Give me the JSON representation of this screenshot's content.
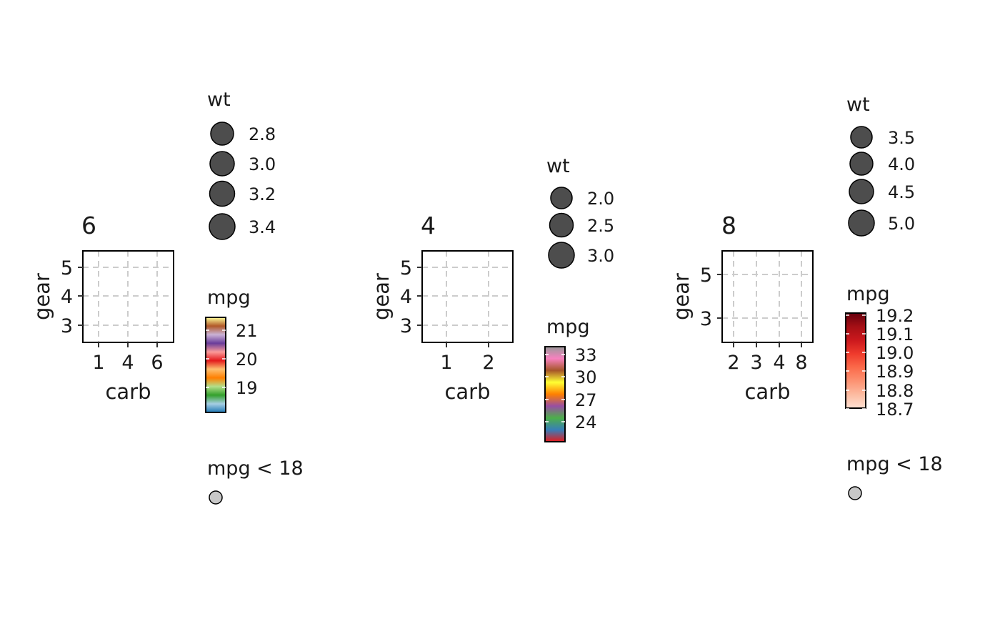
{
  "chart_data": [
    {
      "type": "scatter",
      "title": "6",
      "xlabel": "carb",
      "ylabel": "gear",
      "x_ticks": [
        "1",
        "4",
        "6"
      ],
      "y_ticks": [
        "3",
        "4",
        "5"
      ],
      "xlim": [
        0.45,
        6.55
      ],
      "ylim": [
        2.45,
        5.55
      ],
      "grid": "dashed",
      "points": [],
      "legends": {
        "size": {
          "title": "wt",
          "labels": [
            "2.8",
            "3.0",
            "3.2",
            "3.4"
          ],
          "values": [
            2.8,
            3.0,
            3.2,
            3.4
          ]
        },
        "color": {
          "title": "mpg",
          "labels": [
            "21",
            "20",
            "19"
          ],
          "values": [
            21,
            20,
            19
          ],
          "range": [
            17.8,
            21.4
          ],
          "colors": [
            "#1f78b4",
            "#a6cee3",
            "#33a02c",
            "#b2df8a",
            "#ff7f00",
            "#fdbf6f",
            "#e31a1c",
            "#fb9a99",
            "#6a3d9a",
            "#cab2d6",
            "#b15928",
            "#ffff99"
          ]
        },
        "na": {
          "title": "mpg < 18",
          "color": "#c8c8c8"
        }
      }
    },
    {
      "type": "scatter",
      "title": "4",
      "xlabel": "carb",
      "ylabel": "gear",
      "x_ticks": [
        "1",
        "2"
      ],
      "y_ticks": [
        "3",
        "4",
        "5"
      ],
      "xlim": [
        0.45,
        2.55
      ],
      "ylim": [
        2.45,
        5.55
      ],
      "grid": "dashed",
      "points": [],
      "legends": {
        "size": {
          "title": "wt",
          "labels": [
            "2.0",
            "2.5",
            "3.0"
          ],
          "values": [
            2.0,
            2.5,
            3.0
          ]
        },
        "color": {
          "title": "mpg",
          "labels": [
            "33",
            "30",
            "27",
            "24"
          ],
          "values": [
            33,
            30,
            27,
            24
          ],
          "range": [
            21.4,
            33.9
          ],
          "colors": [
            "#e41a1c",
            "#377eb8",
            "#4daf4a",
            "#984ea3",
            "#ff7f00",
            "#ffff33",
            "#a65628",
            "#f781bf",
            "#999999"
          ]
        },
        "na": null
      }
    },
    {
      "type": "scatter",
      "title": "8",
      "xlabel": "carb",
      "ylabel": "gear",
      "x_ticks": [
        "2",
        "3",
        "4",
        "8"
      ],
      "y_ticks": [
        "3",
        "5"
      ],
      "xlim": [
        0.6,
        4.4
      ],
      "ylim": [
        2.1,
        5.9
      ],
      "grid": "dashed",
      "points": [],
      "legends": {
        "size": {
          "title": "wt",
          "labels": [
            "3.5",
            "4.0",
            "4.5",
            "5.0"
          ],
          "values": [
            3.5,
            4.0,
            4.5,
            5.0
          ]
        },
        "color": {
          "title": "mpg",
          "labels": [
            "19.2",
            "19.1",
            "19.0",
            "18.9",
            "18.8",
            "18.7"
          ],
          "values": [
            19.2,
            19.1,
            19.0,
            18.9,
            18.8,
            18.7
          ],
          "range": [
            18.7,
            19.2
          ],
          "colors": [
            "#fee0d2",
            "#fcbba1",
            "#fc9272",
            "#fb6a4a",
            "#ef3b2c",
            "#cb181d",
            "#a50f15",
            "#67000d"
          ]
        },
        "na": {
          "title": "mpg < 18",
          "color": "#c8c8c8"
        }
      }
    }
  ]
}
